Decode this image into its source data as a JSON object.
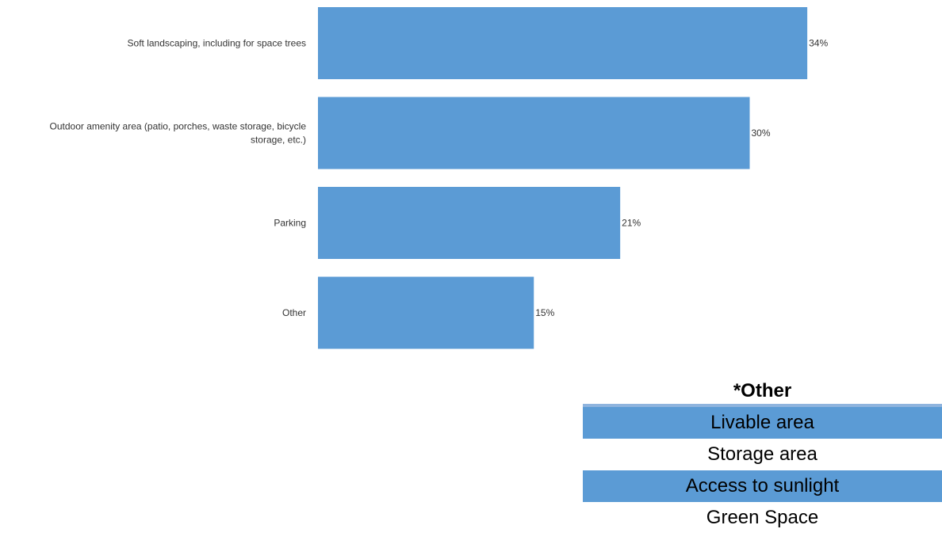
{
  "chart_data": {
    "type": "bar",
    "orientation": "horizontal",
    "categories": [
      "Soft landscaping, including for space trees",
      "Outdoor amenity area (patio, porches, waste storage, bicycle storage, etc.)",
      "Parking",
      "Other"
    ],
    "category_lines": [
      [
        "Soft landscaping, including for space trees"
      ],
      [
        "Outdoor amenity area (patio, porches, waste storage, bicycle",
        "storage, etc.)"
      ],
      [
        "Parking"
      ],
      [
        "Other"
      ]
    ],
    "values": [
      34,
      30,
      21,
      15
    ],
    "value_labels": [
      "34%",
      "30%",
      "21%",
      "15%"
    ],
    "unit": "%",
    "xlim": [
      0,
      40
    ],
    "bar_color": "#5b9bd5",
    "grid": false,
    "legend": "none"
  },
  "other_table": {
    "title": "*Other",
    "rows": [
      "Livable area",
      "Storage area",
      "Access to sunlight",
      "Green Space"
    ],
    "shaded_color": "#5b9bd5"
  }
}
